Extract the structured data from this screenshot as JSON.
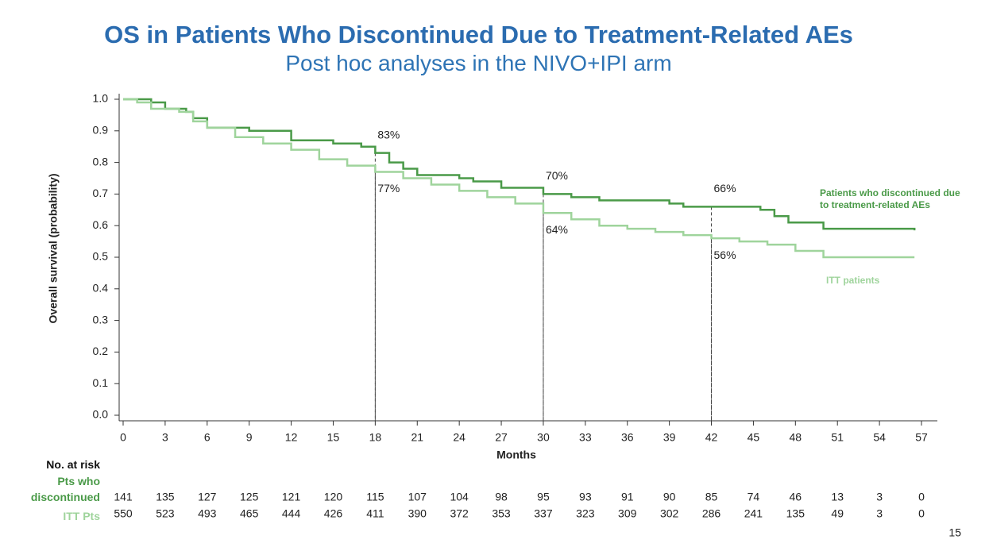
{
  "chart_data": {
    "type": "line",
    "step": true,
    "title": "OS in Patients Who Discontinued Due to Treatment-Related AEs",
    "subtitle": "Post hoc analyses in the NIVO+IPI arm",
    "xlabel": "Months",
    "ylabel": "Overall survival (probability)",
    "xlim": [
      0,
      57
    ],
    "ylim": [
      0,
      1
    ],
    "xticks": [
      0,
      3,
      6,
      9,
      12,
      15,
      18,
      21,
      24,
      27,
      30,
      33,
      36,
      39,
      42,
      45,
      48,
      51,
      54,
      57
    ],
    "yticks": [
      {
        "value": 0,
        "label": "0.0"
      },
      0.1,
      0.2,
      0.3,
      0.4,
      0.5,
      0.6,
      0.7,
      0.8,
      0.9,
      {
        "value": 1,
        "label": "1.0"
      }
    ],
    "series": [
      {
        "name": "Patients who discontinued due to treatment-related AEs",
        "color": "#4a9a48",
        "x": [
          0,
          2,
          3,
          4.5,
          5,
          6,
          9,
          12,
          15,
          17,
          18,
          19,
          20,
          21,
          24,
          25,
          27,
          30,
          32,
          34,
          39,
          40,
          45.5,
          46.5,
          47.5,
          50,
          56.5
        ],
        "values": [
          1.0,
          0.99,
          0.97,
          0.96,
          0.94,
          0.91,
          0.9,
          0.87,
          0.86,
          0.85,
          0.83,
          0.8,
          0.78,
          0.76,
          0.75,
          0.74,
          0.72,
          0.7,
          0.69,
          0.68,
          0.67,
          0.66,
          0.65,
          0.63,
          0.61,
          0.59,
          0.585
        ]
      },
      {
        "name": "ITT patients",
        "color": "#9fd49c",
        "x": [
          0,
          1,
          2,
          4,
          5,
          6,
          8,
          10,
          12,
          14,
          16,
          18,
          20,
          22,
          24,
          26,
          28,
          30,
          32,
          34,
          36,
          38,
          40,
          42,
          44,
          46,
          48,
          50,
          56.5
        ],
        "values": [
          1.0,
          0.99,
          0.97,
          0.96,
          0.93,
          0.91,
          0.88,
          0.86,
          0.84,
          0.81,
          0.79,
          0.77,
          0.75,
          0.73,
          0.71,
          0.69,
          0.67,
          0.64,
          0.62,
          0.6,
          0.59,
          0.58,
          0.57,
          0.56,
          0.55,
          0.54,
          0.52,
          0.5,
          0.5
        ]
      }
    ],
    "annotations": [
      {
        "x": 18,
        "value": 0.83,
        "label": "83%",
        "series": 0
      },
      {
        "x": 18,
        "value": 0.77,
        "label": "77%",
        "series": 1
      },
      {
        "x": 30,
        "value": 0.7,
        "label": "70%",
        "series": 0
      },
      {
        "x": 30,
        "value": 0.64,
        "label": "64%",
        "series": 1
      },
      {
        "x": 42,
        "value": 0.66,
        "label": "66%",
        "series": 0
      },
      {
        "x": 42,
        "value": 0.56,
        "label": "56%",
        "series": 1
      }
    ],
    "risk_table": {
      "title": "No. at risk",
      "rows": [
        {
          "label": "Pts who discontinued",
          "values": [
            141,
            135,
            127,
            125,
            121,
            120,
            115,
            107,
            104,
            98,
            95,
            93,
            91,
            90,
            85,
            74,
            46,
            13,
            3,
            0
          ]
        },
        {
          "label": "ITT Pts",
          "values": [
            550,
            523,
            493,
            465,
            444,
            426,
            411,
            390,
            372,
            353,
            337,
            323,
            309,
            302,
            286,
            241,
            135,
            49,
            3,
            0
          ]
        }
      ]
    },
    "page_number": "15"
  }
}
